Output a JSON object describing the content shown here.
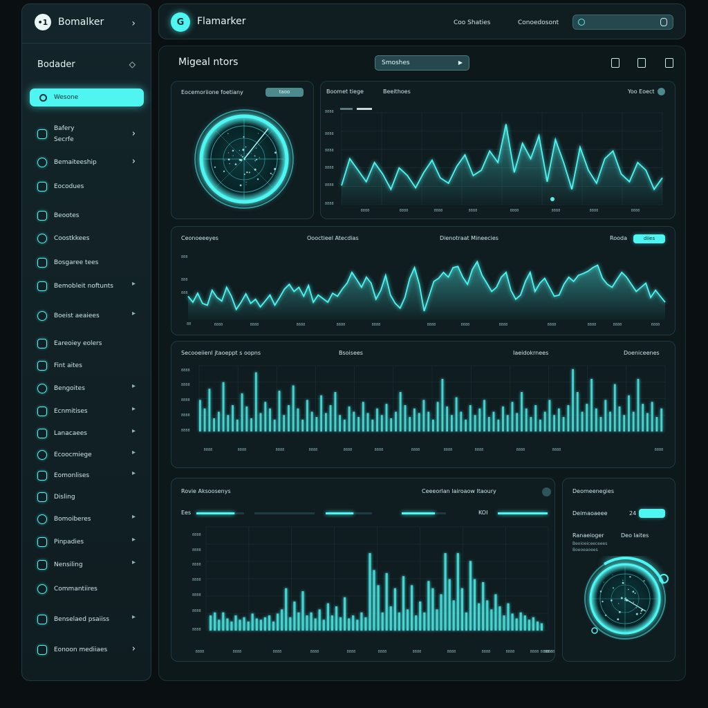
{
  "colors": {
    "accent": "#4ff5f0",
    "bg": "#0a1012",
    "panel": "#0f1c20",
    "border": "#1f3a40"
  },
  "sidebar": {
    "app_title": "Bomalker",
    "logo_glyph": "•1",
    "section_title": "Bodader",
    "active_item": "Wesone",
    "items": [
      {
        "label": "Bafery\nSecrfe",
        "icon": "gamepad-icon"
      },
      {
        "label": "Bemaiteeship",
        "icon": "box-icon"
      },
      {
        "label": "Eocodues",
        "icon": "refresh-icon"
      },
      {
        "label": "Beootes",
        "icon": "list-icon"
      },
      {
        "label": "Coostkkees",
        "icon": "document-icon"
      },
      {
        "label": "Bosgaree tees",
        "icon": "clock-icon"
      },
      {
        "label": "Bemobleit noftunts",
        "icon": "folder-icon"
      },
      {
        "label": "Boeist aeaiees",
        "icon": "layers-icon"
      },
      {
        "label": "Eareoiey eolers",
        "icon": "chat-icon"
      },
      {
        "label": "Fint aites",
        "icon": "globe-icon"
      },
      {
        "label": "Bengoites",
        "icon": "user-icon"
      },
      {
        "label": "Ecnmitises",
        "icon": "archive-icon"
      },
      {
        "label": "Lanacaees",
        "icon": "shield-icon"
      },
      {
        "label": "Ecoocmiege",
        "icon": "gear-icon"
      },
      {
        "label": "Eomonlises",
        "icon": "clock-icon"
      },
      {
        "label": "Disling",
        "icon": "star-icon"
      },
      {
        "label": "Bomoiberes",
        "icon": "bolt-icon"
      },
      {
        "label": "Pinpadies",
        "icon": "pin-icon"
      },
      {
        "label": "Nensiling",
        "icon": "bell-icon"
      },
      {
        "label": "Commantiires",
        "icon": "user-circle-icon"
      },
      {
        "label": "Benselaed psaiiss",
        "icon": "grid-icon"
      },
      {
        "label": "Eonoon mediiaes",
        "icon": "chart-icon"
      }
    ]
  },
  "header": {
    "logo_glyph": "G",
    "app_title": "Flamarker",
    "nav": [
      "Coo Shaties",
      "Conoedosont"
    ]
  },
  "main": {
    "title": "Migeal ntors",
    "select_value": "Smoshes"
  },
  "panel_gauge": {
    "title": "Eocemoriione foetiany",
    "pill": "taoo"
  },
  "panel_line1": {
    "tabs": [
      "Boomet tiege",
      "Beeithoes"
    ],
    "control": "Yoo Eoect",
    "y_ticks": [
      "8888",
      "8888",
      "8888",
      "8888",
      "8888",
      "8888"
    ],
    "x_ticks": [
      "8888",
      "8888",
      "8888",
      "8888",
      "8888",
      "8888",
      "8888",
      "8888"
    ],
    "values": [
      25,
      60,
      45,
      30,
      55,
      40,
      20,
      48,
      38,
      22,
      42,
      58,
      35,
      28,
      50,
      65,
      38,
      45,
      70,
      55,
      105,
      42,
      80,
      60,
      90,
      30,
      85,
      55,
      20,
      75,
      45,
      28,
      60,
      70,
      40,
      30,
      55,
      45,
      20,
      35
    ]
  },
  "panel_line2": {
    "labels": [
      "Ceonoeeeyes",
      "Oooctieel Atecdias",
      "Dienotraat Mineecies",
      "Rooda"
    ],
    "pill": "diies",
    "y_ticks": [
      "888",
      "888",
      "888",
      "88"
    ],
    "x_ticks": [
      "8888",
      "8888",
      "8888",
      "8888",
      "8888",
      "8888",
      "8888",
      "8888",
      "8888",
      "8888",
      "8888",
      "8888"
    ],
    "values": [
      40,
      30,
      45,
      28,
      25,
      50,
      38,
      32,
      55,
      40,
      18,
      30,
      44,
      28,
      35,
      22,
      32,
      42,
      25,
      38,
      52,
      60,
      48,
      55,
      40,
      58,
      30,
      42,
      36,
      30,
      45,
      40,
      52,
      62,
      80,
      68,
      55,
      72,
      62,
      35,
      50,
      75,
      42,
      28,
      20,
      38,
      70,
      88,
      60,
      15,
      40,
      65,
      70,
      80,
      72,
      88,
      90,
      72,
      60,
      85,
      98,
      75,
      62,
      48,
      55,
      72,
      80,
      50,
      35,
      42,
      65,
      80,
      48,
      62,
      70,
      55,
      40,
      42,
      60,
      72,
      65,
      75,
      78,
      82,
      88,
      92,
      70,
      60,
      55,
      68,
      80,
      72,
      60,
      48,
      55,
      62,
      38,
      50,
      40,
      30
    ]
  },
  "panel_bars1": {
    "labels": [
      "Secooeiienl jtaoeppt s oopns",
      "Bsoisees",
      "Iaeidokrnees",
      "Doeniceenes"
    ],
    "y_ticks": [
      "8888",
      "8888",
      "8888",
      "8888",
      "8888"
    ],
    "x_ticks": [
      "8888",
      "8888",
      "8888",
      "8888",
      "8888",
      "8888",
      "8888",
      "8888",
      "8888",
      "8888",
      "8888",
      "8888"
    ],
    "values": [
      48,
      35,
      65,
      20,
      30,
      75,
      25,
      40,
      18,
      58,
      38,
      20,
      90,
      28,
      45,
      35,
      18,
      62,
      25,
      40,
      70,
      35,
      18,
      48,
      30,
      22,
      55,
      28,
      40,
      60,
      25,
      18,
      38,
      30,
      22,
      45,
      28,
      18,
      35,
      25,
      42,
      20,
      30,
      60,
      40,
      22,
      35,
      28,
      48,
      30,
      18,
      45,
      80,
      38,
      25,
      52,
      30,
      18,
      40,
      25,
      35,
      48,
      22,
      30,
      18,
      38,
      25,
      45,
      28,
      60,
      35,
      22,
      40,
      18,
      30,
      48,
      25,
      35,
      22,
      40,
      95,
      60,
      30,
      42,
      80,
      35,
      22,
      48,
      30,
      72,
      38,
      25,
      55,
      30,
      80,
      42,
      28,
      45,
      22,
      35
    ]
  },
  "panel_bars2": {
    "labels": [
      "Rovie Aksoosenys",
      "Ceeeorlan lairoaow ltaoury",
      "Ees",
      "KOI"
    ],
    "y_ticks": [
      "8888",
      "8888",
      "8888",
      "8888",
      "8888",
      "8888",
      "8888"
    ],
    "x_ticks": [
      "8888",
      "8888",
      "8888",
      "8888",
      "8888",
      "8888",
      "8888",
      "8888",
      "8888",
      "8888",
      "8888",
      "8888",
      "8888",
      "8888"
    ],
    "progress": [
      0.8,
      0.0,
      0.6,
      0.75,
      1.0
    ],
    "values": [
      25,
      30,
      18,
      30,
      20,
      15,
      25,
      18,
      22,
      15,
      28,
      20,
      18,
      22,
      25,
      15,
      28,
      35,
      70,
      22,
      48,
      30,
      65,
      25,
      30,
      20,
      35,
      18,
      45,
      25,
      40,
      22,
      55,
      20,
      25,
      18,
      30,
      22,
      128,
      100,
      75,
      30,
      95,
      40,
      70,
      30,
      90,
      35,
      75,
      25,
      48,
      30,
      82,
      70,
      35,
      60,
      128,
      85,
      50,
      128,
      70,
      30,
      115,
      85,
      45,
      80,
      50,
      35,
      60,
      40,
      25,
      45,
      28,
      20,
      30,
      25,
      18,
      22,
      15,
      12
    ]
  },
  "panel_side": {
    "title": "Deomeenegies",
    "row_label": "Deimaoaeee",
    "row_value": "24",
    "col1": "Ranaeioger",
    "col2": "Deo Iaites",
    "sub": "Beoioeiceeceees",
    "sub2": "Boeoeaoees"
  }
}
